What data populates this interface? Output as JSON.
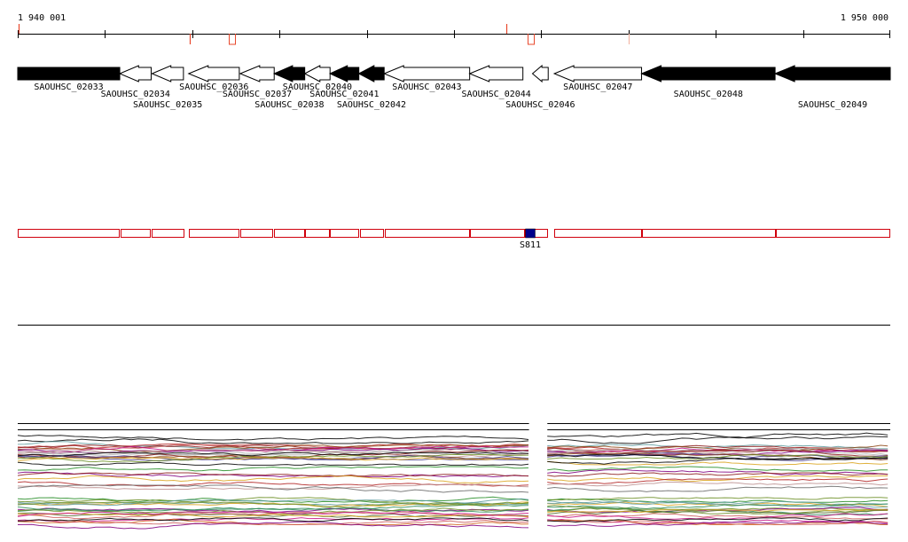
{
  "ruler": {
    "start_label": "1 940 001",
    "end_label": "1 950 000",
    "start": 1940001,
    "end": 1950000,
    "tick_step": 1000,
    "marks": [
      {
        "pos": 1940010,
        "kind": "up",
        "color": "#e8482c"
      },
      {
        "pos": 1941970,
        "kind": "down",
        "color": "#e8482c"
      },
      {
        "pos": 1942460,
        "kind": "notch",
        "color": "#e8482c"
      },
      {
        "pos": 1945600,
        "kind": "up",
        "color": "#e8482c"
      },
      {
        "pos": 1945880,
        "kind": "notch",
        "color": "#e8482c"
      },
      {
        "pos": 1947000,
        "kind": "down",
        "color": "#f3b8a8"
      }
    ]
  },
  "genes": [
    {
      "name": "SAOUHSC_02033",
      "start": 1940001,
      "end": 1941170,
      "strand": "+",
      "fill": "black",
      "label_row": 1
    },
    {
      "name": "SAOUHSC_02034",
      "start": 1941170,
      "end": 1941530,
      "strand": "-",
      "fill": "white",
      "label_row": 2
    },
    {
      "name": "SAOUHSC_02035",
      "start": 1941540,
      "end": 1941900,
      "strand": "-",
      "fill": "white",
      "label_row": 3
    },
    {
      "name": "SAOUHSC_02036",
      "start": 1941960,
      "end": 1942540,
      "strand": "-",
      "fill": "white",
      "label_row": 1
    },
    {
      "name": "SAOUHSC_02037",
      "start": 1942550,
      "end": 1942940,
      "strand": "-",
      "fill": "white",
      "label_row": 2
    },
    {
      "name": "SAOUHSC_02038",
      "start": 1942940,
      "end": 1943290,
      "strand": "-",
      "fill": "black",
      "label_row": 3
    },
    {
      "name": "SAOUHSC_02040",
      "start": 1943290,
      "end": 1943580,
      "strand": "-",
      "fill": "white",
      "label_row": 1
    },
    {
      "name": "SAOUHSC_02041",
      "start": 1943580,
      "end": 1943910,
      "strand": "-",
      "fill": "black",
      "label_row": 2
    },
    {
      "name": "SAOUHSC_02042",
      "start": 1943910,
      "end": 1944200,
      "strand": "-",
      "fill": "black",
      "label_row": 3
    },
    {
      "name": "SAOUHSC_02043",
      "start": 1944200,
      "end": 1945180,
      "strand": "-",
      "fill": "white",
      "label_row": 1
    },
    {
      "name": "SAOUHSC_02044",
      "start": 1945180,
      "end": 1945790,
      "strand": "-",
      "fill": "white",
      "label_row": 2
    },
    {
      "name": "SAOUHSC_02046",
      "start": 1945900,
      "end": 1946080,
      "strand": "-",
      "fill": "white",
      "label_row": 3
    },
    {
      "name": "SAOUHSC_02047",
      "start": 1946150,
      "end": 1947150,
      "strand": "-",
      "fill": "white",
      "label_row": 1
    },
    {
      "name": "SAOUHSC_02048",
      "start": 1947150,
      "end": 1948680,
      "strand": "-",
      "fill": "black",
      "label_row": 2
    },
    {
      "name": "SAOUHSC_02049",
      "start": 1948680,
      "end": 1950000,
      "strand": "-",
      "fill": "black",
      "label_row": 3
    }
  ],
  "peptide_track": {
    "color": "#d0000d",
    "boxes": [
      [
        1940001,
        1941170
      ],
      [
        1941180,
        1941530
      ],
      [
        1941540,
        1941910
      ],
      [
        1941960,
        1942540
      ],
      [
        1942550,
        1942930
      ],
      [
        1942940,
        1943290
      ],
      [
        1943290,
        1943580
      ],
      [
        1943580,
        1943910
      ],
      [
        1943920,
        1944200
      ],
      [
        1944210,
        1945180
      ],
      [
        1945180,
        1945810
      ],
      [
        1945810,
        1946080
      ],
      [
        1946150,
        1947150
      ],
      [
        1947150,
        1948690
      ],
      [
        1948690,
        1950000
      ]
    ],
    "feature": {
      "name": "S811",
      "start": 1945820,
      "end": 1945930,
      "color": "#00008b"
    }
  },
  "expression": {
    "gap": [
      1945860,
      1946070
    ],
    "line_count": 46
  }
}
